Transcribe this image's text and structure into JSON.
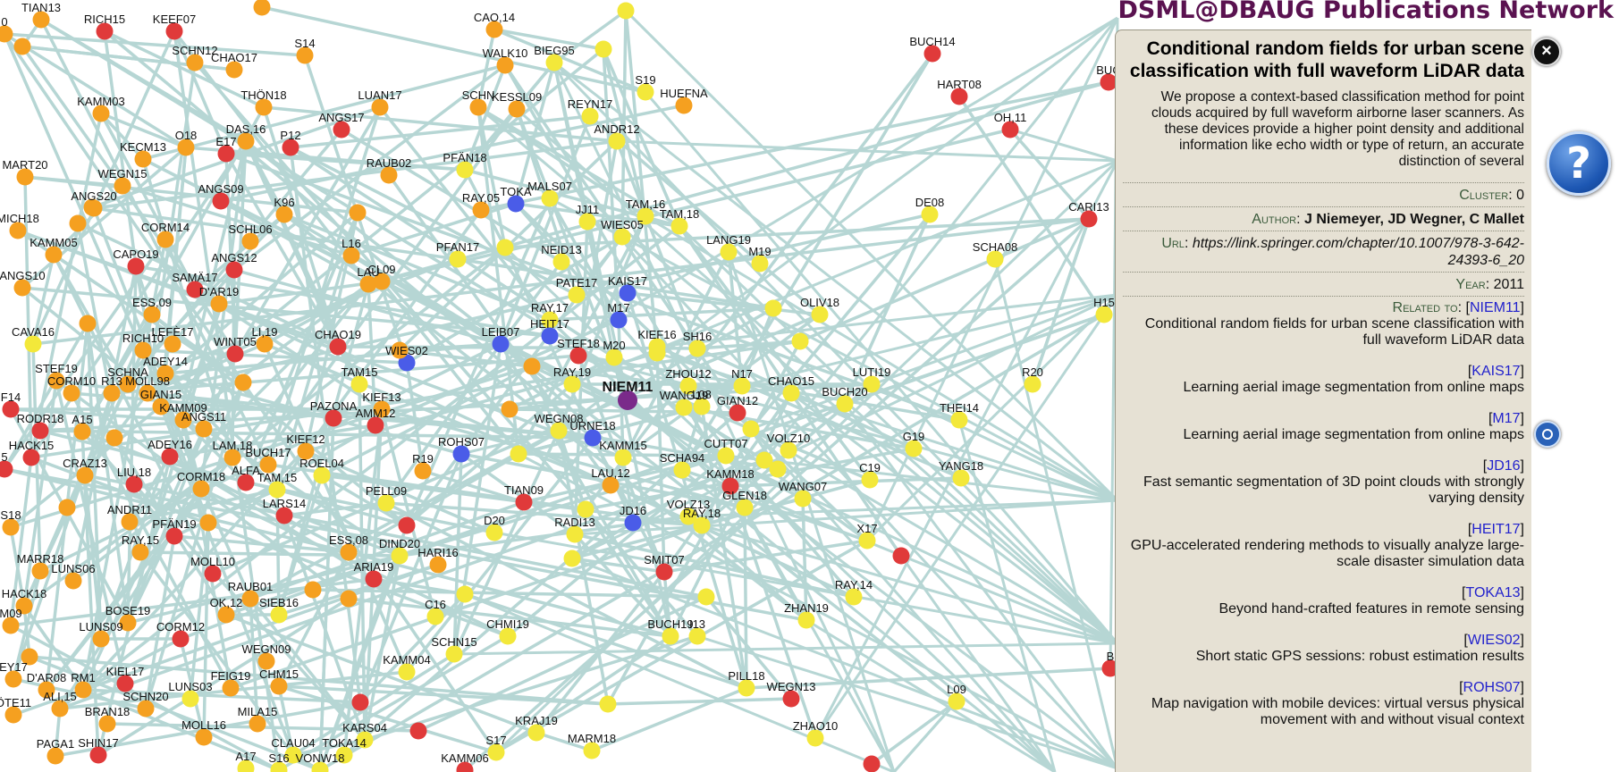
{
  "app": {
    "title": "DSML@DBAUG Publications Network"
  },
  "graph": {
    "colors": {
      "edge": "#b6d6d4",
      "red": "#e03a3a",
      "orange": "#f5a020",
      "yellow": "#f3e83a",
      "blue": "#4a5ce8",
      "purple": "#7a2a8a"
    },
    "nodes": [
      {
        "id": "TIAN13",
        "l": "TIAN13",
        "c": "orange"
      },
      {
        "id": "RICH15",
        "l": "RICH15",
        "c": "red"
      },
      {
        "id": "KEEF07",
        "l": "KEEF07",
        "c": "red"
      },
      {
        "id": "CAO14",
        "l": "CAO,14",
        "c": "orange"
      },
      {
        "id": "SCHN12",
        "l": "SCHN12",
        "c": "orange"
      },
      {
        "id": "CHAO17",
        "l": "CHAO17",
        "c": "orange"
      },
      {
        "id": "S14",
        "l": "S14",
        "c": "orange"
      },
      {
        "id": "WALK10",
        "l": "WALK10",
        "c": "orange"
      },
      {
        "id": "BIEG95",
        "l": "BIEG95",
        "c": "yellow"
      },
      {
        "id": "KAMM03",
        "l": "KAMM03",
        "c": "orange"
      },
      {
        "id": "THON18",
        "l": "THÖN18",
        "c": "orange"
      },
      {
        "id": "LUAN17",
        "l": "LUAN17",
        "c": "orange"
      },
      {
        "id": "SCHN",
        "l": "SCHN",
        "c": "orange"
      },
      {
        "id": "KESSL09",
        "l": "KESSL09",
        "c": "orange"
      },
      {
        "id": "REYN17",
        "l": "REYN17",
        "c": "yellow"
      },
      {
        "id": "S19",
        "l": "S19",
        "c": "yellow"
      },
      {
        "id": "HUEFNA",
        "l": "HUEFNA",
        "c": "orange"
      },
      {
        "id": "ANGS17",
        "l": "ANGS17",
        "c": "red"
      },
      {
        "id": "DAS16",
        "l": "DAS,16",
        "c": "orange"
      },
      {
        "id": "O18",
        "l": "O18",
        "c": "orange"
      },
      {
        "id": "E17",
        "l": "E17",
        "c": "red"
      },
      {
        "id": "P12",
        "l": "P12",
        "c": "red"
      },
      {
        "id": "ANDR12",
        "l": "ANDR12",
        "c": "yellow"
      },
      {
        "id": "MART20",
        "l": "MART20",
        "c": "orange"
      },
      {
        "id": "KECM13",
        "l": "KECM13",
        "c": "orange"
      },
      {
        "id": "RAUB02",
        "l": "RAUB02",
        "c": "orange"
      },
      {
        "id": "PFAN18",
        "l": "PFÄN18",
        "c": "yellow"
      },
      {
        "id": "WEGN15",
        "l": "WEGN15",
        "c": "orange"
      },
      {
        "id": "ANGS20",
        "l": "ANGS20",
        "c": "orange"
      },
      {
        "id": "ANGS09",
        "l": "ANGS09",
        "c": "red"
      },
      {
        "id": "K96",
        "l": "K96",
        "c": "orange"
      },
      {
        "id": "RAY05",
        "l": "RAY,05",
        "c": "orange"
      },
      {
        "id": "TOKA",
        "l": "TOKA",
        "c": "blue"
      },
      {
        "id": "MALS07",
        "l": "MALS07",
        "c": "yellow"
      },
      {
        "id": "TAM16",
        "l": "TAM,16",
        "c": "yellow"
      },
      {
        "id": "JJ11",
        "l": "JJ11",
        "c": "yellow"
      },
      {
        "id": "WIES05",
        "l": "WIES05",
        "c": "yellow"
      },
      {
        "id": "TAM18",
        "l": "TAM,18",
        "c": "yellow"
      },
      {
        "id": "MICH18",
        "l": "MICH18",
        "c": "orange"
      },
      {
        "id": "CORM14",
        "l": "CORM14",
        "c": "orange"
      },
      {
        "id": "SCHL06",
        "l": "SCHL06",
        "c": "orange"
      },
      {
        "id": "KAMM05",
        "l": "KAMM05",
        "c": "orange"
      },
      {
        "id": "PFAN17",
        "l": "PFAN17",
        "c": "yellow"
      },
      {
        "id": "NEID13",
        "l": "NEID13",
        "c": "yellow"
      },
      {
        "id": "LANG19",
        "l": "LANG19",
        "c": "yellow"
      },
      {
        "id": "M19",
        "l": "M19",
        "c": "yellow"
      },
      {
        "id": "L16",
        "l": "L16",
        "c": "orange"
      },
      {
        "id": "CAPO19",
        "l": "CAPO19",
        "c": "red"
      },
      {
        "id": "ANGS12",
        "l": "ANGS12",
        "c": "red"
      },
      {
        "id": "LAU",
        "l": "LAU",
        "c": "orange"
      },
      {
        "id": "CL09",
        "l": "CL09",
        "c": "orange"
      },
      {
        "id": "ANGS10",
        "l": "ANGS10",
        "c": "orange"
      },
      {
        "id": "SAMA17",
        "l": "SAMÄ17",
        "c": "red"
      },
      {
        "id": "DAR19",
        "l": "D'AR19",
        "c": "orange"
      },
      {
        "id": "PATE17",
        "l": "PATE17",
        "c": "yellow"
      },
      {
        "id": "KAIS17",
        "l": "KAIS17",
        "c": "blue"
      },
      {
        "id": "ESS09",
        "l": "ESS,09",
        "c": "orange"
      },
      {
        "id": "RAY17",
        "l": "RAY,17",
        "c": "yellow"
      },
      {
        "id": "M17",
        "l": "M17",
        "c": "blue"
      },
      {
        "id": "OLIV18",
        "l": "OLIV18",
        "c": "yellow"
      },
      {
        "id": "CAVA16",
        "l": "CAVA16",
        "c": "yellow"
      },
      {
        "id": "RICH10",
        "l": "RICH10",
        "c": "orange"
      },
      {
        "id": "LEFE17",
        "l": "LEFÈ17",
        "c": "orange"
      },
      {
        "id": "WINT05",
        "l": "WINT05",
        "c": "red"
      },
      {
        "id": "LI19",
        "l": "LI,19",
        "c": "orange"
      },
      {
        "id": "CHAO19",
        "l": "CHAO19",
        "c": "red"
      },
      {
        "id": "LEIB07",
        "l": "LEIB07",
        "c": "blue"
      },
      {
        "id": "HEIT17",
        "l": "HEIT17",
        "c": "blue"
      },
      {
        "id": "KIEF16",
        "l": "KIEF16",
        "c": "yellow"
      },
      {
        "id": "SH16",
        "l": "SH16",
        "c": "yellow"
      },
      {
        "id": "STEF18",
        "l": "STEF18",
        "c": "red"
      },
      {
        "id": "M20",
        "l": "M20",
        "c": "yellow"
      },
      {
        "id": "WIES02",
        "l": "WIES02",
        "c": "blue"
      },
      {
        "id": "ADEY14",
        "l": "ADEY14",
        "c": "orange"
      },
      {
        "id": "STEF19",
        "l": "STEF19",
        "c": "orange"
      },
      {
        "id": "SCHNA",
        "l": "SCHNA",
        "c": "orange"
      },
      {
        "id": "CORM10",
        "l": "CORM10",
        "c": "orange"
      },
      {
        "id": "R13",
        "l": "R13",
        "c": "orange"
      },
      {
        "id": "MOLL98",
        "l": "MOLL98",
        "c": "orange"
      },
      {
        "id": "TAM15",
        "l": "TAM15",
        "c": "yellow"
      },
      {
        "id": "RAY19",
        "l": "RAY,19",
        "c": "yellow"
      },
      {
        "id": "ZHOU12",
        "l": "ZHOU12",
        "c": "yellow"
      },
      {
        "id": "N17",
        "l": "N17",
        "c": "yellow"
      },
      {
        "id": "CHAO15",
        "l": "CHAO15",
        "c": "yellow"
      },
      {
        "id": "LUTI19",
        "l": "LUTI19",
        "c": "yellow"
      },
      {
        "id": "F14",
        "l": "F14",
        "c": "red"
      },
      {
        "id": "GIAN15",
        "l": "GIAN15",
        "c": "orange"
      },
      {
        "id": "KIEF13",
        "l": "KIEF13",
        "c": "orange"
      },
      {
        "id": "NIEM11",
        "l": "NIEM11",
        "c": "purple",
        "main": true
      },
      {
        "id": "WANG19",
        "l": "WANG19",
        "c": "yellow"
      },
      {
        "id": "L08",
        "l": "L08",
        "c": "yellow"
      },
      {
        "id": "GIAN12",
        "l": "GIAN12",
        "c": "red"
      },
      {
        "id": "BUCH20",
        "l": "BUCH20",
        "c": "yellow"
      },
      {
        "id": "KAMM09",
        "l": "KAMM09",
        "c": "orange"
      },
      {
        "id": "PAZONA",
        "l": "PAZONA",
        "c": "red"
      },
      {
        "id": "AMM12",
        "l": "AMM12",
        "c": "red"
      },
      {
        "id": "RODR18",
        "l": "RODR18",
        "c": "red"
      },
      {
        "id": "A15",
        "l": "A15",
        "c": "orange"
      },
      {
        "id": "ANGS11",
        "l": "ANGS11",
        "c": "orange"
      },
      {
        "id": "WEGN08",
        "l": "WEGN08",
        "c": "yellow"
      },
      {
        "id": "URNE18",
        "l": "URNE18",
        "c": "blue"
      },
      {
        "id": "THEI14",
        "l": "THEI14",
        "c": "yellow"
      },
      {
        "id": "R20",
        "l": "R20",
        "c": "yellow"
      },
      {
        "id": "HACK15",
        "l": "HACK15",
        "c": "red"
      },
      {
        "id": "ADEY16",
        "l": "ADEY16",
        "c": "red"
      },
      {
        "id": "LAM18",
        "l": "LAM,18",
        "c": "orange"
      },
      {
        "id": "KIEF12",
        "l": "KIEF12",
        "c": "orange"
      },
      {
        "id": "ROHS07",
        "l": "ROHS07",
        "c": "blue"
      },
      {
        "id": "KAMM15",
        "l": "KAMM15",
        "c": "yellow"
      },
      {
        "id": "VOLZ10",
        "l": "VOLZ10",
        "c": "yellow"
      },
      {
        "id": "CUTT07",
        "l": "CUTT07",
        "c": "yellow"
      },
      {
        "id": "G19",
        "l": "G19",
        "c": "yellow"
      },
      {
        "id": "BUCH17",
        "l": "BUCH17",
        "c": "orange"
      },
      {
        "id": "ROEL04",
        "l": "ROEL04",
        "c": "yellow"
      },
      {
        "id": "R19",
        "l": "R19",
        "c": "orange"
      },
      {
        "id": "SCHA94",
        "l": "SCHA94",
        "c": "yellow"
      },
      {
        "id": "CRAZ13",
        "l": "CRAZ13",
        "c": "orange"
      },
      {
        "id": "LIU18",
        "l": "LIU,18",
        "c": "red"
      },
      {
        "id": "CORM18",
        "l": "CORM18",
        "c": "orange"
      },
      {
        "id": "ALFA",
        "l": "ALFA",
        "c": "red"
      },
      {
        "id": "TAM15b",
        "l": "TAM,15",
        "c": "yellow"
      },
      {
        "id": "LAU12",
        "l": "LAU,12",
        "c": "orange"
      },
      {
        "id": "KAMM18",
        "l": "KAMM18",
        "c": "red"
      },
      {
        "id": "C19",
        "l": "C19",
        "c": "yellow"
      },
      {
        "id": "YANG18",
        "l": "YANG18",
        "c": "yellow"
      },
      {
        "id": "LARS14",
        "l": "LARS14",
        "c": "red"
      },
      {
        "id": "PELL09",
        "l": "PELL09",
        "c": "yellow"
      },
      {
        "id": "TIAN09",
        "l": "TIAN09",
        "c": "red"
      },
      {
        "id": "WANG07",
        "l": "WANG07",
        "c": "yellow"
      },
      {
        "id": "GLEN18",
        "l": "GLEN18",
        "c": "yellow"
      },
      {
        "id": "S18",
        "l": "S18",
        "c": "orange"
      },
      {
        "id": "ANDR11",
        "l": "ANDR11",
        "c": "orange"
      },
      {
        "id": "PFAN19",
        "l": "PFÄN19",
        "c": "red"
      },
      {
        "id": "JD16",
        "l": "JD16",
        "c": "blue"
      },
      {
        "id": "VOLZ13",
        "l": "VOLZ13",
        "c": "yellow"
      },
      {
        "id": "RAY18",
        "l": "RAY,18",
        "c": "yellow"
      },
      {
        "id": "RAY15",
        "l": "RAY,15",
        "c": "orange"
      },
      {
        "id": "D20",
        "l": "D20",
        "c": "yellow"
      },
      {
        "id": "RADI13",
        "l": "RADI13",
        "c": "yellow"
      },
      {
        "id": "X17",
        "l": "X17",
        "c": "yellow"
      },
      {
        "id": "MARR18",
        "l": "MARR18",
        "c": "orange"
      },
      {
        "id": "LUNS06",
        "l": "LUNS06",
        "c": "orange"
      },
      {
        "id": "ESS08",
        "l": "ESS,08",
        "c": "orange"
      },
      {
        "id": "DIND20",
        "l": "DIND20",
        "c": "yellow"
      },
      {
        "id": "HARI16",
        "l": "HARI16",
        "c": "orange"
      },
      {
        "id": "MOLL10",
        "l": "MOLL10",
        "c": "red"
      },
      {
        "id": "ARIA19",
        "l": "ARIA19",
        "c": "red"
      },
      {
        "id": "SMIT07",
        "l": "SMIT07",
        "c": "red"
      },
      {
        "id": "HACK18",
        "l": "HACK18",
        "c": "orange"
      },
      {
        "id": "RAUB01",
        "l": "RAUB01",
        "c": "orange"
      },
      {
        "id": "BOSE19",
        "l": "BOSE19",
        "c": "orange"
      },
      {
        "id": "OK12",
        "l": "OK,12",
        "c": "orange"
      },
      {
        "id": "SIEB16",
        "l": "SIEB16",
        "c": "yellow"
      },
      {
        "id": "RAY14",
        "l": "RAY,14",
        "c": "yellow"
      },
      {
        "id": "ZHAN19",
        "l": "ZHAN19",
        "c": "yellow"
      },
      {
        "id": "M09",
        "l": "M09",
        "c": "orange"
      },
      {
        "id": "LUNS09",
        "l": "LUNS09",
        "c": "orange"
      },
      {
        "id": "CORM12",
        "l": "CORM12",
        "c": "red"
      },
      {
        "id": "C16",
        "l": "C16",
        "c": "yellow"
      },
      {
        "id": "CHMI19",
        "l": "CHMI19",
        "c": "yellow"
      },
      {
        "id": "BUCH19",
        "l": "BUCH19",
        "c": "yellow"
      },
      {
        "id": "I13",
        "l": "I13",
        "c": "yellow"
      },
      {
        "id": "WEGN09",
        "l": "WEGN09",
        "c": "orange"
      },
      {
        "id": "SCHN15",
        "l": "SCHN15",
        "c": "yellow"
      },
      {
        "id": "KAMM04",
        "l": "KAMM04",
        "c": "yellow"
      },
      {
        "id": "EY17",
        "l": "EY17",
        "c": "orange"
      },
      {
        "id": "DAR08",
        "l": "D'AR08",
        "c": "orange"
      },
      {
        "id": "RM1",
        "l": "RM1",
        "c": "orange"
      },
      {
        "id": "KIEL17",
        "l": "KIEL17",
        "c": "red"
      },
      {
        "id": "FEIG19",
        "l": "FEIG19",
        "c": "orange"
      },
      {
        "id": "CHM15",
        "l": "CHM15",
        "c": "orange"
      },
      {
        "id": "PILL18",
        "l": "PILL18",
        "c": "yellow"
      },
      {
        "id": "WEGN13",
        "l": "WEGN13",
        "c": "red"
      },
      {
        "id": "L09",
        "l": "L09",
        "c": "yellow"
      },
      {
        "id": "ALI15",
        "l": "ALI,15",
        "c": "orange"
      },
      {
        "id": "SCHN20",
        "l": "SCHN20",
        "c": "orange"
      },
      {
        "id": "LUNS03",
        "l": "LUNS03",
        "c": "yellow"
      },
      {
        "id": "OTE11",
        "l": "ÖTE11",
        "c": "orange"
      },
      {
        "id": "BRAN18",
        "l": "BRAN18",
        "c": "orange"
      },
      {
        "id": "MILA15",
        "l": "MILA15",
        "c": "orange"
      },
      {
        "id": "MOLL16",
        "l": "MOLL16",
        "c": "orange"
      },
      {
        "id": "KARS04",
        "l": "KARS04",
        "c": "yellow"
      },
      {
        "id": "KRAJ19",
        "l": "KRAJ19",
        "c": "yellow"
      },
      {
        "id": "ZHAO10",
        "l": "ZHAO10",
        "c": "yellow"
      },
      {
        "id": "PAGA1",
        "l": "PAGA1",
        "c": "orange"
      },
      {
        "id": "SHIN17",
        "l": "SHIN17",
        "c": "red"
      },
      {
        "id": "CLAU04",
        "l": "CLAU04",
        "c": "yellow"
      },
      {
        "id": "TOKA14",
        "l": "TOKA14",
        "c": "yellow"
      },
      {
        "id": "S17",
        "l": "S17",
        "c": "yellow"
      },
      {
        "id": "MARM18",
        "l": "MARM18",
        "c": "yellow"
      },
      {
        "id": "A17",
        "l": "A17",
        "c": "yellow"
      },
      {
        "id": "S16",
        "l": "S16",
        "c": "yellow"
      },
      {
        "id": "VONW18",
        "l": "VONW18",
        "c": "yellow"
      },
      {
        "id": "KAMM06",
        "l": "KAMM06",
        "c": "red"
      },
      {
        "id": "BUCH14",
        "l": "BUCH14",
        "c": "red"
      },
      {
        "id": "HART08",
        "l": "HART08",
        "c": "red"
      },
      {
        "id": "OH11",
        "l": "OH,11",
        "c": "red"
      },
      {
        "id": "DE08",
        "l": "DE08",
        "c": "yellow"
      },
      {
        "id": "CARI13",
        "l": "CARI13",
        "c": "red"
      },
      {
        "id": "SCHA08",
        "l": "SCHA08",
        "c": "yellow"
      },
      {
        "id": "H15",
        "l": "H15",
        "c": "yellow"
      },
      {
        "id": "BUC",
        "l": "BUC",
        "c": "red"
      },
      {
        "id": "B",
        "l": "B",
        "c": "red"
      },
      {
        "id": "O",
        "l": "0",
        "c": "orange"
      },
      {
        "id": "ANGS10b",
        "l": "5",
        "c": "red"
      }
    ]
  },
  "panel": {
    "paper_title": "Conditional random fields for urban scene classification with full waveform LiDAR data",
    "abstract": "We propose a context-based classification method for point clouds acquired by full waveform airborne laser scanners. As these devices provide a higher point density and additional information like echo width or type of return, an accurate distinction of several",
    "cluster_label": "Cluster",
    "cluster": "0",
    "author_label": "Author",
    "authors": "J Niemeyer, JD Wegner, C Mallet",
    "url_label": "Url",
    "url": "https://link.springer.com/chapter/10.1007/978-3-642-24393-6_20",
    "year_label": "Year",
    "year": "2011",
    "related_label": "Related to",
    "related": [
      {
        "key": "NIEM11",
        "title": "Conditional random fields for urban scene classification with full waveform LiDAR data"
      },
      {
        "key": "KAIS17",
        "title": "Learning aerial image segmentation from online maps"
      },
      {
        "key": "M17",
        "title": "Learning aerial image segmentation from online maps"
      },
      {
        "key": "JD16",
        "title": "Fast semantic segmentation of 3D point clouds with strongly varying density"
      },
      {
        "key": "HEIT17",
        "title": "GPU-accelerated rendering methods to visually analyze large-scale disaster simulation data"
      },
      {
        "key": "TOKA13",
        "title": "Beyond hand-crafted features in remote sensing"
      },
      {
        "key": "WIES02",
        "title": "Short static GPS sessions: robust estimation results"
      },
      {
        "key": "ROHS07",
        "title": "Map navigation with mobile devices: virtual versus physical movement with and without visual context"
      }
    ]
  },
  "buttons": {
    "close_symbol": "×",
    "help_symbol": "?"
  }
}
